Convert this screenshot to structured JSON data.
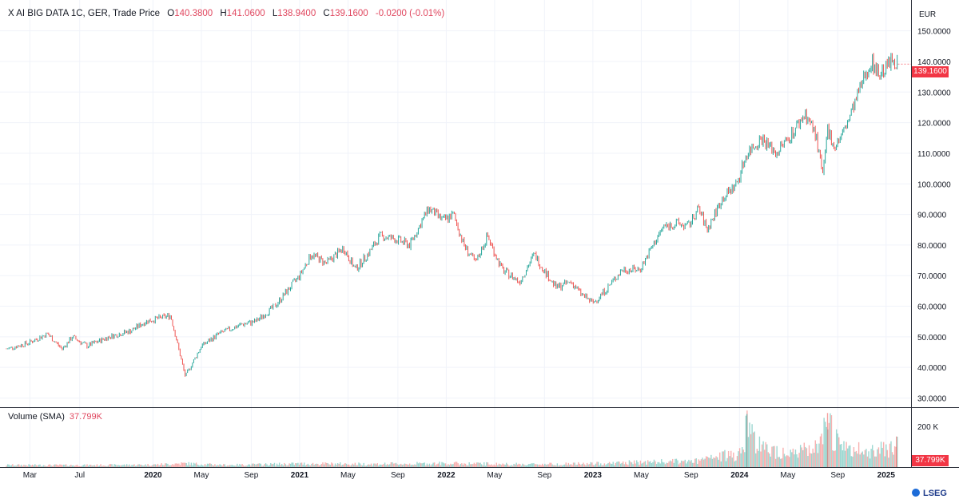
{
  "legend": {
    "symbol": "X AI BIG DATA 1C, GER, Trade Price",
    "open_label": "O",
    "open": "140.3800",
    "high_label": "H",
    "high": "141.0600",
    "low_label": "L",
    "low": "138.9400",
    "close_label": "C",
    "close": "139.1600",
    "change": "-0.0200 (-0.01%)"
  },
  "volume_legend": {
    "label": "Volume (SMA)",
    "value": "37.799K"
  },
  "currency": "EUR",
  "last_price_tag": "139.1600",
  "volume_tag": "37.799K",
  "brand": "LSEG",
  "colors": {
    "up": "#26a69a",
    "down": "#ef5350",
    "tag": "#f23645"
  },
  "chart_data": {
    "type": "line",
    "title": "",
    "xlabel": "",
    "ylabel": "",
    "ylim": [
      27,
      158
    ],
    "y_ticks": [
      "30.0000",
      "40.0000",
      "50.0000",
      "60.0000",
      "70.0000",
      "80.0000",
      "90.0000",
      "100.0000",
      "110.0000",
      "120.0000",
      "130.0000",
      "140.0000",
      "150.0000"
    ],
    "y_tick_values": [
      30,
      40,
      50,
      60,
      70,
      80,
      90,
      100,
      110,
      120,
      130,
      140,
      150
    ],
    "x_ticks": [
      {
        "label": "Mar",
        "t": 2019.16,
        "bold": false
      },
      {
        "label": "Jul",
        "t": 2019.5,
        "bold": false
      },
      {
        "label": "2020",
        "t": 2020.0,
        "bold": true
      },
      {
        "label": "May",
        "t": 2020.33,
        "bold": false
      },
      {
        "label": "Sep",
        "t": 2020.67,
        "bold": false
      },
      {
        "label": "2021",
        "t": 2021.0,
        "bold": true
      },
      {
        "label": "May",
        "t": 2021.33,
        "bold": false
      },
      {
        "label": "Sep",
        "t": 2021.67,
        "bold": false
      },
      {
        "label": "2022",
        "t": 2022.0,
        "bold": true
      },
      {
        "label": "May",
        "t": 2022.33,
        "bold": false
      },
      {
        "label": "Sep",
        "t": 2022.67,
        "bold": false
      },
      {
        "label": "2023",
        "t": 2023.0,
        "bold": true
      },
      {
        "label": "May",
        "t": 2023.33,
        "bold": false
      },
      {
        "label": "Sep",
        "t": 2023.67,
        "bold": false
      },
      {
        "label": "2024",
        "t": 2024.0,
        "bold": true
      },
      {
        "label": "May",
        "t": 2024.33,
        "bold": false
      },
      {
        "label": "Sep",
        "t": 2024.67,
        "bold": false
      },
      {
        "label": "2025",
        "t": 2025.0,
        "bold": true
      }
    ],
    "series": [
      {
        "name": "Trade Price",
        "points": [
          [
            2019.0,
            46
          ],
          [
            2019.15,
            48
          ],
          [
            2019.28,
            51
          ],
          [
            2019.38,
            46
          ],
          [
            2019.45,
            50
          ],
          [
            2019.55,
            47
          ],
          [
            2019.7,
            50
          ],
          [
            2019.85,
            52
          ],
          [
            2019.95,
            55
          ],
          [
            2020.12,
            57
          ],
          [
            2020.22,
            37
          ],
          [
            2020.33,
            47
          ],
          [
            2020.45,
            51
          ],
          [
            2020.6,
            54
          ],
          [
            2020.7,
            55
          ],
          [
            2020.83,
            60
          ],
          [
            2021.0,
            70
          ],
          [
            2021.08,
            77
          ],
          [
            2021.18,
            74
          ],
          [
            2021.3,
            79
          ],
          [
            2021.38,
            72
          ],
          [
            2021.48,
            78
          ],
          [
            2021.55,
            83
          ],
          [
            2021.65,
            82
          ],
          [
            2021.75,
            80
          ],
          [
            2021.88,
            92
          ],
          [
            2021.98,
            88
          ],
          [
            2022.05,
            90
          ],
          [
            2022.12,
            80
          ],
          [
            2022.2,
            74
          ],
          [
            2022.28,
            83
          ],
          [
            2022.38,
            72
          ],
          [
            2022.5,
            68
          ],
          [
            2022.6,
            77
          ],
          [
            2022.65,
            73
          ],
          [
            2022.75,
            66
          ],
          [
            2022.85,
            68
          ],
          [
            2022.92,
            64
          ],
          [
            2023.0,
            61
          ],
          [
            2023.1,
            66
          ],
          [
            2023.2,
            72
          ],
          [
            2023.32,
            72
          ],
          [
            2023.4,
            79
          ],
          [
            2023.48,
            86
          ],
          [
            2023.58,
            87
          ],
          [
            2023.65,
            86
          ],
          [
            2023.72,
            92
          ],
          [
            2023.78,
            85
          ],
          [
            2023.88,
            95
          ],
          [
            2023.98,
            100
          ],
          [
            2024.05,
            110
          ],
          [
            2024.15,
            115
          ],
          [
            2024.25,
            110
          ],
          [
            2024.35,
            116
          ],
          [
            2024.45,
            123
          ],
          [
            2024.52,
            116
          ],
          [
            2024.57,
            102
          ],
          [
            2024.6,
            118
          ],
          [
            2024.65,
            112
          ],
          [
            2024.72,
            118
          ],
          [
            2024.8,
            128
          ],
          [
            2024.85,
            135
          ],
          [
            2024.9,
            140
          ],
          [
            2024.95,
            136
          ],
          [
            2025.0,
            138
          ],
          [
            2025.05,
            141
          ],
          [
            2025.08,
            139.16
          ]
        ]
      }
    ],
    "volume": {
      "ylim": [
        0,
        270
      ],
      "y_ticks": [
        "200 K"
      ],
      "y_tick_values": [
        200
      ],
      "sma_value": "37.799K",
      "points": [
        [
          2019.0,
          12
        ],
        [
          2019.5,
          11
        ],
        [
          2020.0,
          14
        ],
        [
          2020.2,
          22
        ],
        [
          2020.5,
          12
        ],
        [
          2021.0,
          20
        ],
        [
          2021.5,
          18
        ],
        [
          2022.0,
          22
        ],
        [
          2022.5,
          17
        ],
        [
          2023.0,
          20
        ],
        [
          2023.35,
          30
        ],
        [
          2023.7,
          35
        ],
        [
          2024.0,
          85
        ],
        [
          2024.05,
          260
        ],
        [
          2024.15,
          110
        ],
        [
          2024.4,
          90
        ],
        [
          2024.55,
          120
        ],
        [
          2024.6,
          265
        ],
        [
          2024.7,
          110
        ],
        [
          2024.85,
          95
        ],
        [
          2025.0,
          120
        ],
        [
          2025.08,
          140
        ]
      ]
    }
  }
}
